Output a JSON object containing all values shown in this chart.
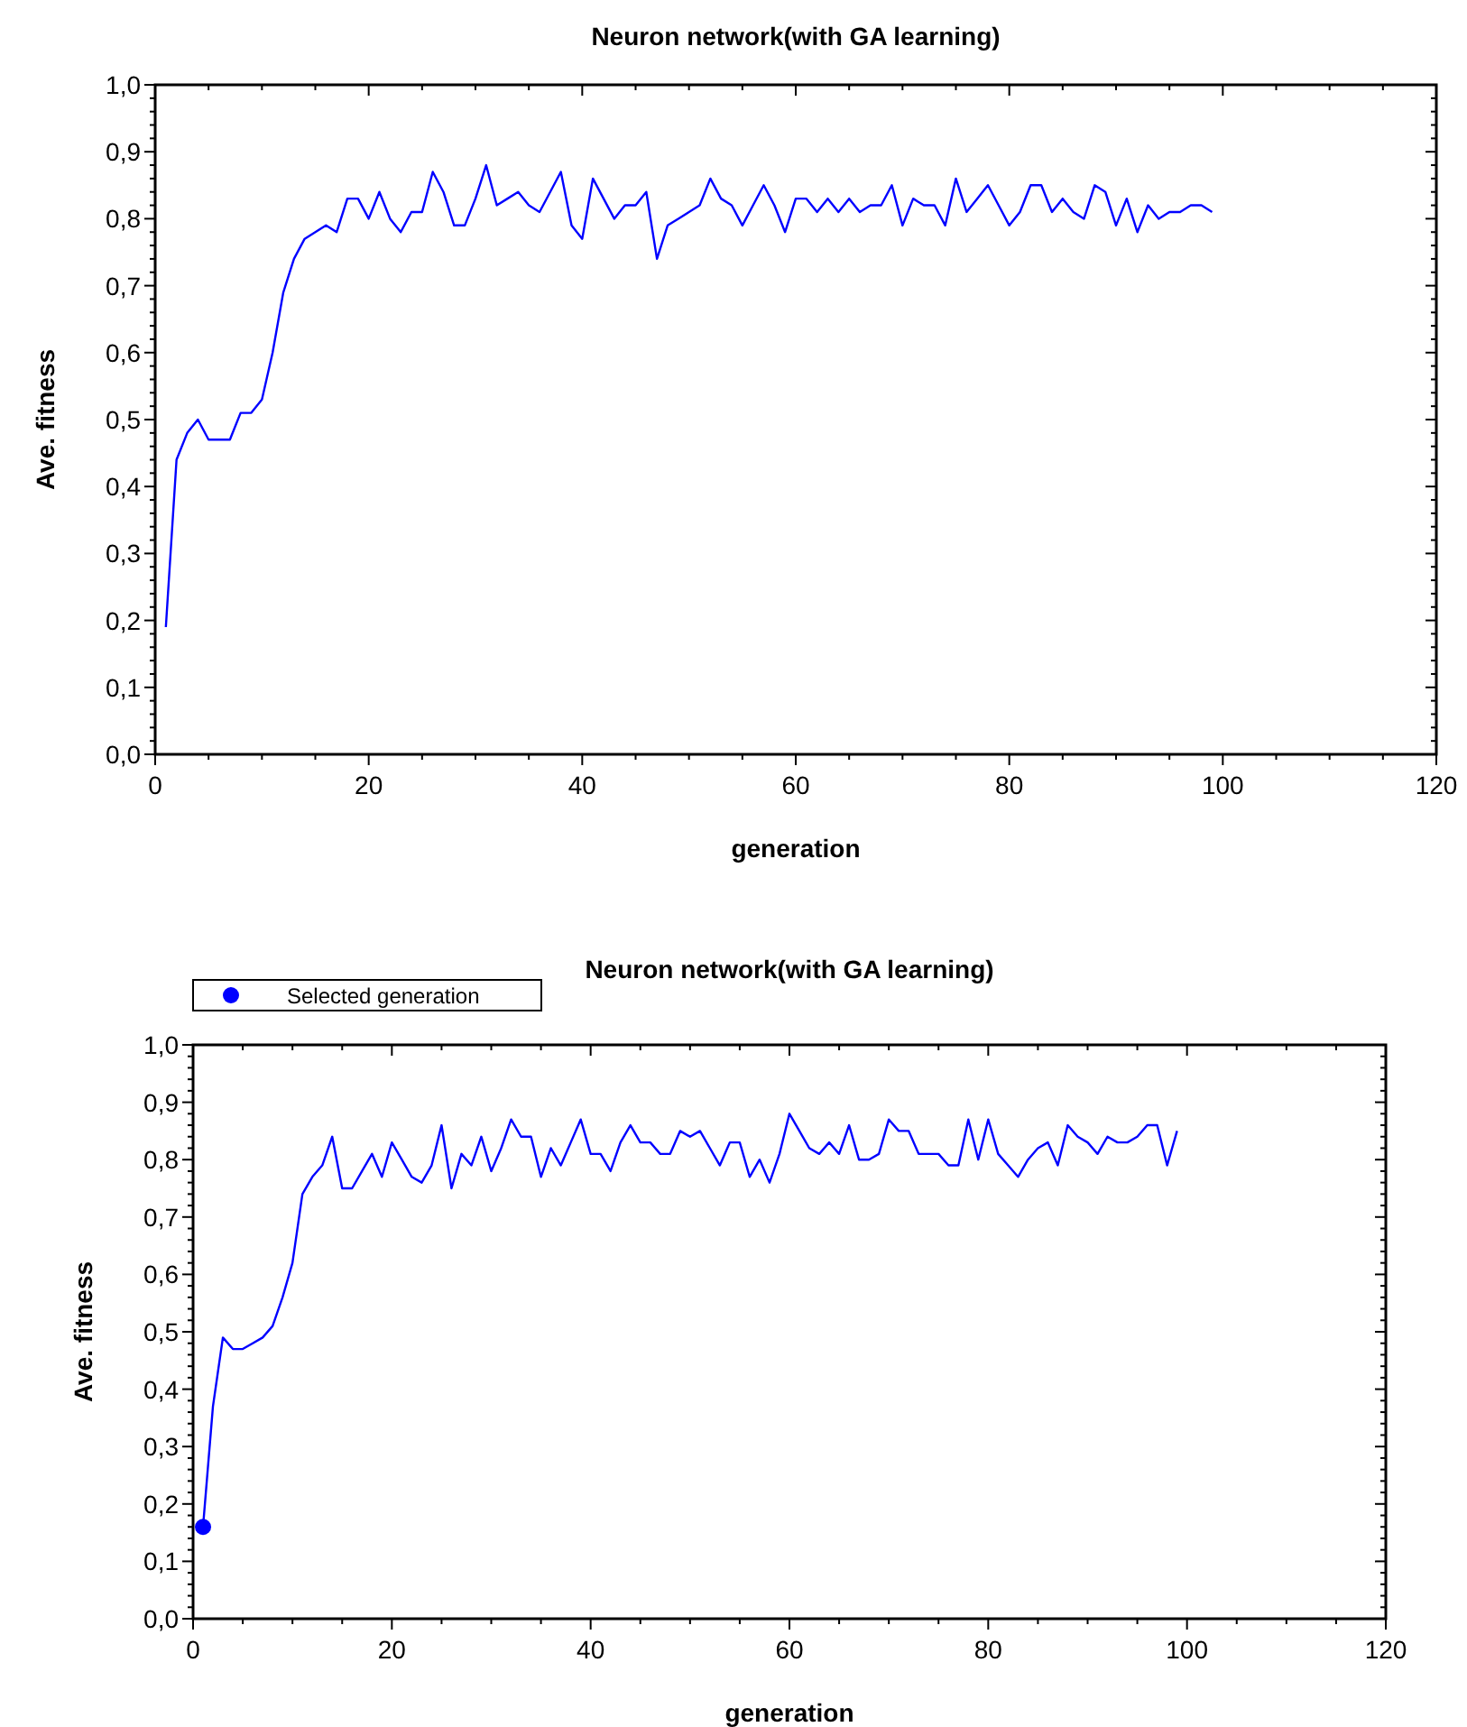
{
  "chart_data": [
    {
      "type": "line",
      "title": "Neuron network(with GA learning)",
      "xlabel": "generation",
      "ylabel": "Ave. fitness",
      "xlim": [
        0,
        120
      ],
      "xticks": [
        0,
        20,
        40,
        60,
        80,
        100,
        120
      ],
      "ylim": [
        0,
        1
      ],
      "yticks": [
        {
          "value": 0,
          "label": "0,0"
        },
        {
          "value": 0.1,
          "label": "0,1"
        },
        {
          "value": 0.2,
          "label": "0,2"
        },
        {
          "value": 0.3,
          "label": "0,3"
        },
        {
          "value": 0.4,
          "label": "0,4"
        },
        {
          "value": 0.5,
          "label": "0,5"
        },
        {
          "value": 0.6,
          "label": "0,6"
        },
        {
          "value": 0.7,
          "label": "0,7"
        },
        {
          "value": 0.8,
          "label": "0,8"
        },
        {
          "value": 0.9,
          "label": "0,9"
        },
        {
          "value": 1,
          "label": "1,0"
        }
      ],
      "grid": false,
      "legend": false,
      "marker": "none",
      "line_style": "solid",
      "series": [
        {
          "color": "#0000ff",
          "x": [
            1,
            2,
            3,
            4,
            5,
            6,
            7,
            8,
            9,
            10,
            11,
            12,
            13,
            14,
            15,
            16,
            17,
            18,
            19,
            20,
            21,
            22,
            23,
            24,
            25,
            26,
            27,
            28,
            29,
            30,
            31,
            32,
            33,
            34,
            35,
            36,
            37,
            38,
            39,
            40,
            41,
            42,
            43,
            44,
            45,
            46,
            47,
            48,
            49,
            50,
            51,
            52,
            53,
            54,
            55,
            56,
            57,
            58,
            59,
            60,
            61,
            62,
            63,
            64,
            65,
            66,
            67,
            68,
            69,
            70,
            71,
            72,
            73,
            74,
            75,
            76,
            77,
            78,
            79,
            80,
            81,
            82,
            83,
            84,
            85,
            86,
            87,
            88,
            89,
            90,
            91,
            92,
            93,
            94,
            95,
            96,
            97,
            98,
            99
          ],
          "values": [
            0.19,
            0.44,
            0.48,
            0.5,
            0.47,
            0.47,
            0.47,
            0.51,
            0.51,
            0.53,
            0.6,
            0.69,
            0.74,
            0.77,
            0.78,
            0.79,
            0.78,
            0.83,
            0.83,
            0.8,
            0.84,
            0.8,
            0.78,
            0.81,
            0.81,
            0.87,
            0.84,
            0.79,
            0.79,
            0.83,
            0.88,
            0.82,
            0.83,
            0.84,
            0.82,
            0.81,
            0.84,
            0.87,
            0.79,
            0.77,
            0.86,
            0.83,
            0.8,
            0.82,
            0.82,
            0.84,
            0.74,
            0.79,
            0.8,
            0.81,
            0.82,
            0.86,
            0.83,
            0.82,
            0.79,
            0.82,
            0.85,
            0.82,
            0.78,
            0.83,
            0.83,
            0.81,
            0.83,
            0.81,
            0.83,
            0.81,
            0.82,
            0.82,
            0.85,
            0.79,
            0.83,
            0.82,
            0.82,
            0.79,
            0.86,
            0.81,
            0.83,
            0.85,
            0.82,
            0.79,
            0.81,
            0.85,
            0.85,
            0.81,
            0.83,
            0.81,
            0.8,
            0.85,
            0.84,
            0.79,
            0.83,
            0.78,
            0.82,
            0.8,
            0.81,
            0.81,
            0.82,
            0.82,
            0.81
          ]
        }
      ]
    },
    {
      "type": "line",
      "title": "Neuron network(with GA learning)",
      "xlabel": "generation",
      "ylabel": "Ave. fitness",
      "xlim": [
        0,
        120
      ],
      "xticks": [
        0,
        20,
        40,
        60,
        80,
        100,
        120
      ],
      "ylim": [
        0,
        1
      ],
      "yticks": [
        {
          "value": 0,
          "label": "0,0"
        },
        {
          "value": 0.1,
          "label": "0,1"
        },
        {
          "value": 0.2,
          "label": "0,2"
        },
        {
          "value": 0.3,
          "label": "0,3"
        },
        {
          "value": 0.4,
          "label": "0,4"
        },
        {
          "value": 0.5,
          "label": "0,5"
        },
        {
          "value": 0.6,
          "label": "0,6"
        },
        {
          "value": 0.7,
          "label": "0,7"
        },
        {
          "value": 0.8,
          "label": "0,8"
        },
        {
          "value": 0.9,
          "label": "0,9"
        },
        {
          "value": 1,
          "label": "1,0"
        }
      ],
      "grid": false,
      "legend": "top left",
      "line_style": "solid",
      "series": [
        {
          "color": "#0000ff",
          "marker": "none",
          "x": [
            1,
            2,
            3,
            4,
            5,
            6,
            7,
            8,
            9,
            10,
            11,
            12,
            13,
            14,
            15,
            16,
            17,
            18,
            19,
            20,
            21,
            22,
            23,
            24,
            25,
            26,
            27,
            28,
            29,
            30,
            31,
            32,
            33,
            34,
            35,
            36,
            37,
            38,
            39,
            40,
            41,
            42,
            43,
            44,
            45,
            46,
            47,
            48,
            49,
            50,
            51,
            52,
            53,
            54,
            55,
            56,
            57,
            58,
            59,
            60,
            61,
            62,
            63,
            64,
            65,
            66,
            67,
            68,
            69,
            70,
            71,
            72,
            73,
            74,
            75,
            76,
            77,
            78,
            79,
            80,
            81,
            82,
            83,
            84,
            85,
            86,
            87,
            88,
            89,
            90,
            91,
            92,
            93,
            94,
            95,
            96,
            97,
            98,
            99
          ],
          "values": [
            0.16,
            0.37,
            0.49,
            0.47,
            0.47,
            0.48,
            0.49,
            0.51,
            0.56,
            0.62,
            0.74,
            0.77,
            0.79,
            0.84,
            0.75,
            0.75,
            0.78,
            0.81,
            0.77,
            0.83,
            0.8,
            0.77,
            0.76,
            0.79,
            0.86,
            0.75,
            0.81,
            0.79,
            0.84,
            0.78,
            0.82,
            0.87,
            0.84,
            0.84,
            0.77,
            0.82,
            0.79,
            0.83,
            0.87,
            0.81,
            0.81,
            0.78,
            0.83,
            0.86,
            0.83,
            0.83,
            0.81,
            0.81,
            0.85,
            0.84,
            0.85,
            0.82,
            0.79,
            0.83,
            0.83,
            0.77,
            0.8,
            0.76,
            0.81,
            0.88,
            0.85,
            0.82,
            0.81,
            0.83,
            0.81,
            0.86,
            0.8,
            0.8,
            0.81,
            0.87,
            0.85,
            0.85,
            0.81,
            0.81,
            0.81,
            0.79,
            0.79,
            0.87,
            0.8,
            0.87,
            0.81,
            0.79,
            0.77,
            0.8,
            0.82,
            0.83,
            0.79,
            0.86,
            0.84,
            0.83,
            0.81,
            0.84,
            0.83,
            0.83,
            0.84,
            0.86,
            0.86,
            0.79,
            0.85
          ]
        },
        {
          "type": "scatter",
          "name": "Selected generation",
          "color": "#0000ff",
          "marker": "circle",
          "x": [
            1
          ],
          "values": [
            0.16
          ]
        }
      ]
    }
  ]
}
